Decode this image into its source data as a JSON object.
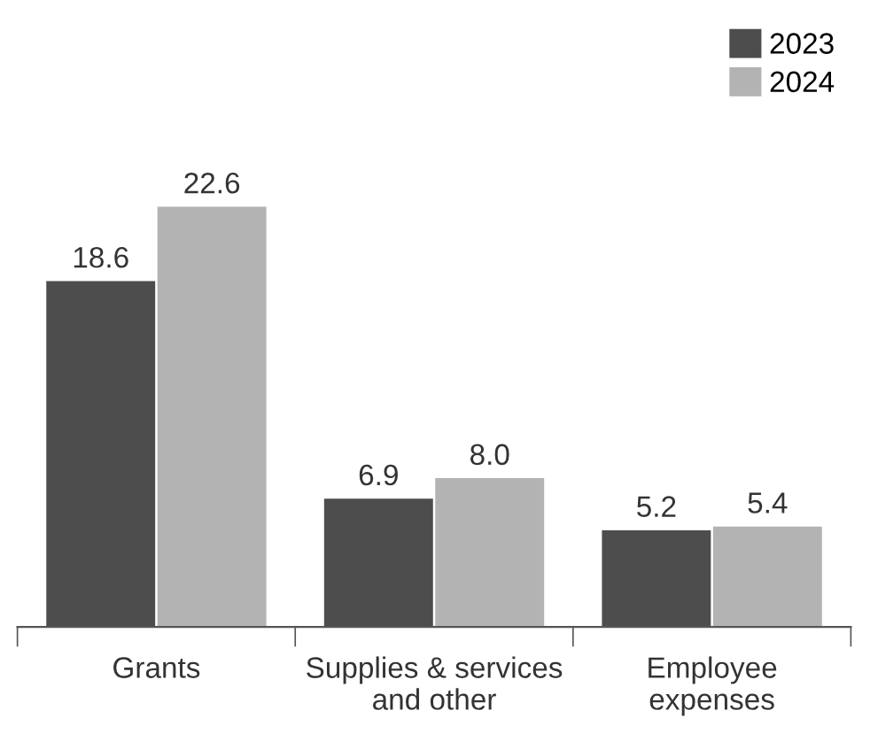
{
  "chart_data": {
    "type": "bar",
    "categories": [
      "Grants",
      "Supplies & services\nand other",
      "Employee\nexpenses"
    ],
    "series": [
      {
        "name": "2023",
        "color": "#4d4d4d",
        "values": [
          18.6,
          6.9,
          5.2
        ],
        "value_labels": [
          "18.6",
          "6.9",
          "5.2"
        ]
      },
      {
        "name": "2024",
        "color": "#b3b3b3",
        "values": [
          22.6,
          8.0,
          5.4
        ],
        "value_labels": [
          "22.6",
          "8.0",
          "5.4"
        ]
      }
    ],
    "legend": "top right",
    "grid": false
  }
}
